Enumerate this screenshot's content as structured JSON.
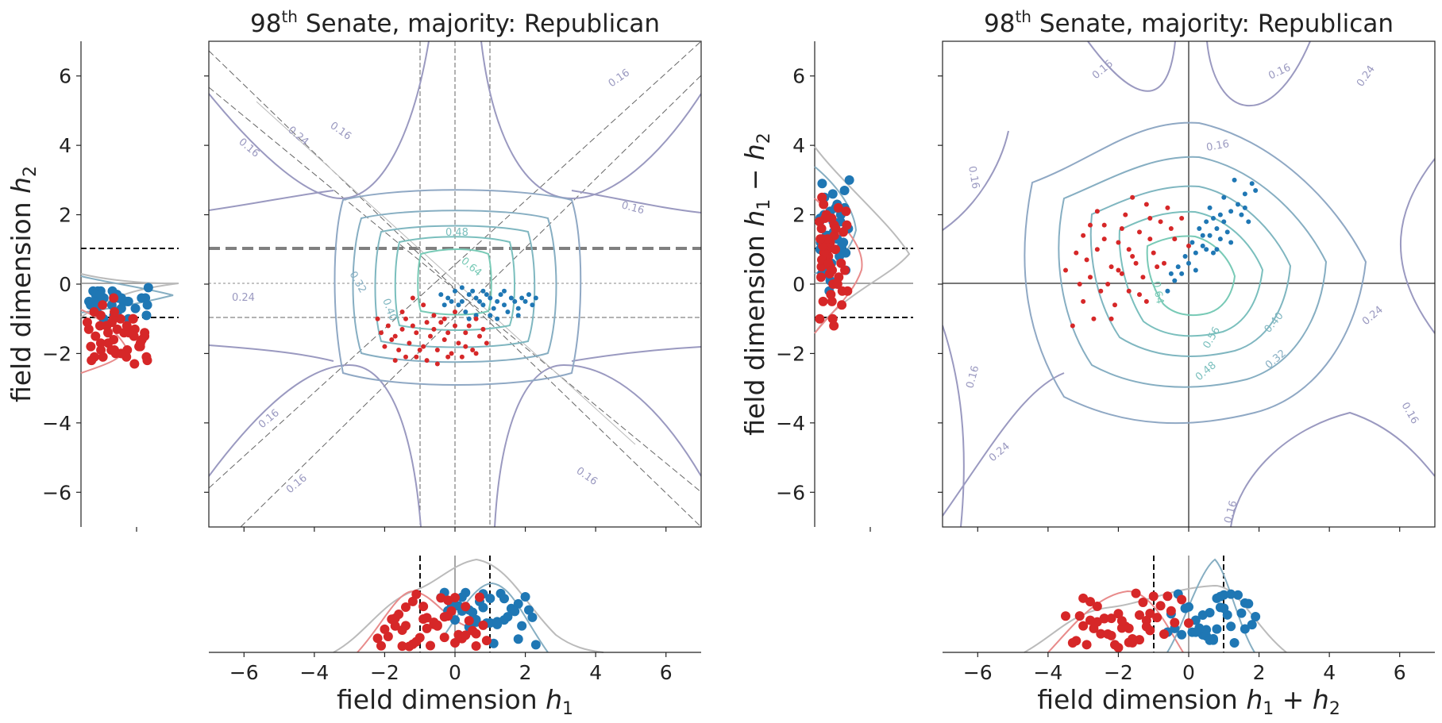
{
  "chart_data": [
    {
      "type": "scatter",
      "panel": "left",
      "title": "98",
      "title_sup": "th",
      "title_rest": " Senate, majority: Republican",
      "xlabel": "field dimension ",
      "xlabel_var": "h",
      "xlabel_sub": "1",
      "ylabel": "field dimension ",
      "ylabel_var": "h",
      "ylabel_sub": "2",
      "xlim": [
        -7,
        7
      ],
      "ylim": [
        -7,
        7
      ],
      "xticks": [
        "−6",
        "−4",
        "−2",
        "0",
        "2",
        "4",
        "6"
      ],
      "yticks": [
        "6",
        "4",
        "2",
        "0",
        "−2",
        "−4",
        "−6"
      ],
      "contour_labels": [
        "0.16",
        "0.16",
        "0.16",
        "0.16",
        "0.16",
        "0.16",
        "0.16",
        "0.24",
        "0.24",
        "0.32",
        "0.40",
        "0.48",
        "0.64"
      ],
      "reference_lines": {
        "dashed_h": [
          1,
          -1
        ],
        "thick_dashed_h": 1,
        "dashed_v": [
          1,
          -1
        ]
      },
      "series": [
        {
          "name": "",
          "color": "#1f77b4",
          "points": [
            [
              -0.4,
              -0.3
            ],
            [
              -0.2,
              -0.4
            ],
            [
              0.0,
              -0.2
            ],
            [
              0.2,
              -0.5
            ],
            [
              0.4,
              -0.3
            ],
            [
              0.6,
              -0.4
            ],
            [
              0.8,
              -0.6
            ],
            [
              1.0,
              -0.4
            ],
            [
              1.2,
              -0.5
            ],
            [
              1.4,
              -0.6
            ],
            [
              1.6,
              -0.4
            ],
            [
              1.8,
              -0.7
            ],
            [
              2.0,
              -0.5
            ],
            [
              2.2,
              -0.6
            ],
            [
              0.3,
              -0.8
            ],
            [
              0.5,
              -0.2
            ],
            [
              0.7,
              -0.5
            ],
            [
              0.9,
              -0.3
            ],
            [
              1.1,
              -0.7
            ],
            [
              1.3,
              -0.3
            ],
            [
              1.5,
              -0.8
            ],
            [
              1.7,
              -0.5
            ],
            [
              1.9,
              -0.4
            ],
            [
              0.1,
              -0.6
            ],
            [
              -0.1,
              -0.5
            ],
            [
              0.6,
              -0.9
            ],
            [
              1.0,
              -0.9
            ],
            [
              1.4,
              -0.2
            ],
            [
              0.8,
              -0.2
            ],
            [
              2.3,
              -0.4
            ],
            [
              0.4,
              -1.0
            ],
            [
              1.2,
              -1.0
            ],
            [
              -0.3,
              -0.6
            ],
            [
              0.2,
              -0.1
            ],
            [
              1.8,
              -0.9
            ],
            [
              2.1,
              -0.3
            ]
          ]
        },
        {
          "name": "",
          "color": "#d62728",
          "points": [
            [
              -2.2,
              -1.0
            ],
            [
              -1.9,
              -1.2
            ],
            [
              -1.7,
              -1.5
            ],
            [
              -1.5,
              -1.3
            ],
            [
              -1.3,
              -1.7
            ],
            [
              -1.1,
              -1.4
            ],
            [
              -0.9,
              -1.8
            ],
            [
              -0.7,
              -1.5
            ],
            [
              -0.5,
              -1.9
            ],
            [
              -0.3,
              -1.6
            ],
            [
              -0.1,
              -2.0
            ],
            [
              0.1,
              -1.7
            ],
            [
              0.3,
              -1.4
            ],
            [
              0.5,
              -1.9
            ],
            [
              0.7,
              -1.5
            ],
            [
              -1.6,
              -1.9
            ],
            [
              -1.4,
              -2.1
            ],
            [
              -1.2,
              -1.2
            ],
            [
              -1.0,
              -1.9
            ],
            [
              -0.8,
              -2.2
            ],
            [
              -0.6,
              -1.3
            ],
            [
              -0.4,
              -1.1
            ],
            [
              -0.2,
              -1.4
            ],
            [
              0.0,
              -1.2
            ],
            [
              0.2,
              -2.1
            ],
            [
              0.4,
              -1.2
            ],
            [
              0.6,
              -1.0
            ],
            [
              0.8,
              -1.3
            ],
            [
              -1.8,
              -1.6
            ],
            [
              -2.0,
              -1.8
            ],
            [
              -1.5,
              -0.8
            ],
            [
              -1.2,
              -0.4
            ],
            [
              -0.9,
              -0.6
            ],
            [
              -0.6,
              -0.9
            ],
            [
              -0.3,
              -1.0
            ],
            [
              0.0,
              -0.8
            ],
            [
              -1.1,
              -2.1
            ],
            [
              -0.5,
              -2.3
            ],
            [
              0.3,
              -1.8
            ],
            [
              -1.7,
              -2.2
            ],
            [
              -2.1,
              -1.4
            ],
            [
              0.9,
              -1.7
            ],
            [
              -1.4,
              -1.0
            ],
            [
              -0.2,
              -2.1
            ],
            [
              0.6,
              -2.0
            ],
            [
              -0.8,
              -1.1
            ]
          ]
        }
      ],
      "h2_marginal": {
        "xticks": [
          "—"
        ]
      }
    },
    {
      "type": "scatter",
      "panel": "right",
      "title": "98",
      "title_sup": "th",
      "title_rest": " Senate, majority: Republican",
      "xlabel": "field dimension ",
      "xlabel_var": "h",
      "xlabel_sub": "1",
      "xlabel_mid": " + ",
      "xlabel_var2": "h",
      "xlabel_sub2": "2",
      "ylabel": "field dimension ",
      "ylabel_var": "h",
      "ylabel_sub": "1",
      "ylabel_mid": " − ",
      "ylabel_var2": "h",
      "ylabel_sub2": "2",
      "xlim": [
        -7,
        7
      ],
      "ylim": [
        -7,
        7
      ],
      "xticks": [
        "−6",
        "−4",
        "−2",
        "0",
        "2",
        "4",
        "6"
      ],
      "yticks": [
        "6",
        "4",
        "2",
        "0",
        "−2",
        "−4",
        "−6"
      ],
      "contour_labels": [
        "0.16",
        "0.16",
        "0.16",
        "0.16",
        "0.16",
        "0.16",
        "0.16",
        "0.24",
        "0.24",
        "0.24",
        "0.32",
        "0.40",
        "0.48",
        "0.56",
        "0.64"
      ],
      "reference_lines": {
        "solid_h": [
          0
        ],
        "solid_v": [
          0
        ],
        "dashed_h_marginal": [
          1,
          -1
        ],
        "dashed_v_marginal": [
          1,
          -1
        ]
      },
      "series": [
        {
          "name": "",
          "color": "#1f77b4",
          "points": [
            [
              -0.6,
              -0.2
            ],
            [
              -0.4,
              0.1
            ],
            [
              -0.2,
              0.3
            ],
            [
              0.0,
              0.6
            ],
            [
              0.2,
              0.9
            ],
            [
              0.4,
              1.1
            ],
            [
              0.6,
              1.4
            ],
            [
              0.8,
              1.6
            ],
            [
              1.0,
              1.8
            ],
            [
              1.2,
              2.1
            ],
            [
              1.4,
              2.3
            ],
            [
              1.6,
              2.6
            ],
            [
              1.8,
              2.9
            ],
            [
              1.3,
              3.0
            ],
            [
              0.5,
              1.8
            ],
            [
              0.7,
              0.9
            ],
            [
              0.9,
              1.3
            ],
            [
              1.1,
              1.5
            ],
            [
              -0.3,
              0.5
            ],
            [
              0.1,
              1.2
            ],
            [
              0.3,
              1.6
            ],
            [
              0.5,
              1.0
            ],
            [
              0.7,
              1.9
            ],
            [
              0.9,
              2.0
            ],
            [
              1.5,
              2.0
            ],
            [
              1.7,
              1.8
            ],
            [
              -0.1,
              0.8
            ],
            [
              0.2,
              0.4
            ],
            [
              0.4,
              1.4
            ],
            [
              0.6,
              2.2
            ],
            [
              1.0,
              2.5
            ],
            [
              1.2,
              1.2
            ],
            [
              -0.5,
              0.3
            ],
            [
              0.8,
              1.0
            ],
            [
              1.6,
              2.2
            ],
            [
              1.9,
              2.7
            ]
          ]
        },
        {
          "name": "",
          "color": "#d62728",
          "points": [
            [
              -3.5,
              0.4
            ],
            [
              -3.2,
              0.9
            ],
            [
              -3.0,
              1.4
            ],
            [
              -2.8,
              0.2
            ],
            [
              -2.6,
              1.0
            ],
            [
              -2.4,
              1.7
            ],
            [
              -2.2,
              0.5
            ],
            [
              -2.0,
              1.2
            ],
            [
              -1.8,
              2.0
            ],
            [
              -1.6,
              0.8
            ],
            [
              -1.4,
              1.5
            ],
            [
              -1.2,
              2.3
            ],
            [
              -1.0,
              0.9
            ],
            [
              -0.8,
              1.8
            ],
            [
              -0.6,
              2.2
            ],
            [
              -0.4,
              1.3
            ],
            [
              -0.2,
              1.9
            ],
            [
              0.0,
              1.1
            ],
            [
              -3.3,
              -1.2
            ],
            [
              -3.0,
              -0.5
            ],
            [
              -2.7,
              -1.0
            ],
            [
              -2.5,
              -0.2
            ],
            [
              -2.3,
              0.0
            ],
            [
              -2.1,
              -0.6
            ],
            [
              -1.9,
              0.3
            ],
            [
              -1.7,
              -0.2
            ],
            [
              -1.5,
              0.6
            ],
            [
              -1.3,
              0.2
            ],
            [
              -1.1,
              1.3
            ],
            [
              -0.9,
              0.5
            ],
            [
              -2.9,
              0.7
            ],
            [
              -2.6,
              2.1
            ],
            [
              -1.6,
              2.5
            ],
            [
              -1.9,
              1.6
            ],
            [
              -1.1,
              1.9
            ],
            [
              -0.7,
              0.6
            ],
            [
              -2.4,
              1.3
            ],
            [
              -3.1,
              0.0
            ],
            [
              -2.2,
              -1.0
            ],
            [
              -1.4,
              -0.3
            ],
            [
              -0.5,
              1.6
            ],
            [
              -2.8,
              1.7
            ],
            [
              -1.7,
              1.0
            ],
            [
              -2.0,
              0.4
            ],
            [
              -1.2,
              -0.5
            ]
          ]
        }
      ]
    }
  ]
}
